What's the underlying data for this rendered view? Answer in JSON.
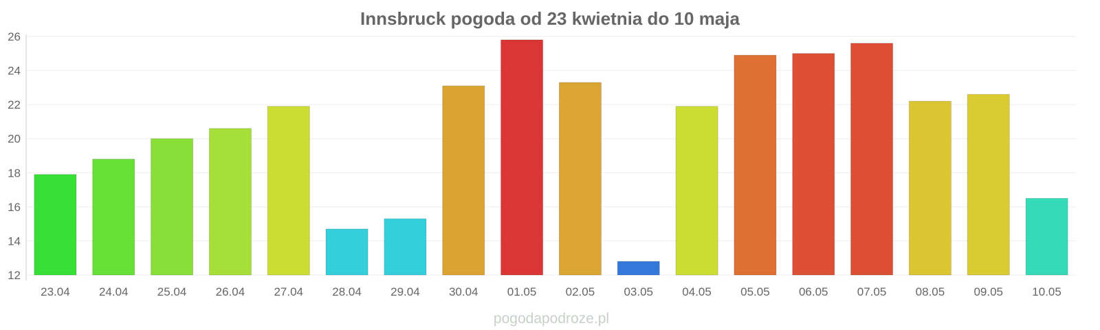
{
  "chart_data": {
    "type": "bar",
    "title": "Innsbruck pogoda od 23 kwietnia do 10 maja",
    "xlabel": "",
    "ylabel": "",
    "ylim": [
      12,
      26
    ],
    "yticks": [
      "12",
      "14",
      "16",
      "18",
      "20",
      "22",
      "24",
      "26"
    ],
    "grid": true,
    "legend": "none",
    "categories": [
      "23.04",
      "24.04",
      "25.04",
      "26.04",
      "27.04",
      "28.04",
      "29.04",
      "30.04",
      "01.05",
      "02.05",
      "03.05",
      "04.05",
      "05.05",
      "06.05",
      "07.05",
      "08.05",
      "09.05",
      "10.05"
    ],
    "values": [
      17.9,
      18.8,
      20.0,
      20.6,
      21.9,
      14.7,
      15.3,
      23.1,
      25.8,
      23.3,
      12.8,
      21.9,
      24.9,
      25.0,
      25.6,
      22.2,
      22.6,
      16.5
    ],
    "colors": [
      "#37df37",
      "#66df37",
      "#88df37",
      "#a6df37",
      "#cddd32",
      "#35cfdb",
      "#35cfdb",
      "#dba432",
      "#db3535",
      "#dba632",
      "#3578db",
      "#cedd32",
      "#dd7032",
      "#dd5035",
      "#dd4f35",
      "#dbc532",
      "#dbcb32",
      "#35dbb9"
    ]
  },
  "watermark": "pogodapodroze.pl"
}
